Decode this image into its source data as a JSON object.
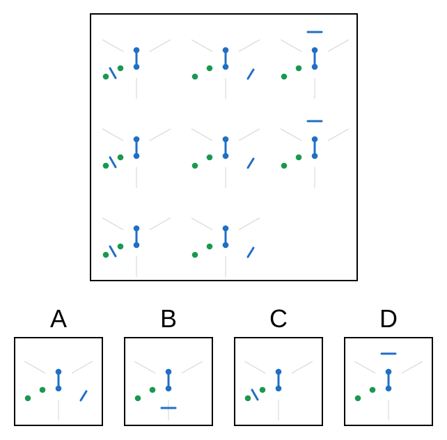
{
  "colors": {
    "guide": "#dddddd",
    "blue": "#1f6fc5",
    "green": "#1a9850",
    "border": "#000000"
  },
  "matrix": {
    "cells": [
      {
        "mark": "left-slash"
      },
      {
        "mark": "right-slash"
      },
      {
        "mark": "top-bar"
      },
      {
        "mark": "left-slash"
      },
      {
        "mark": "right-slash"
      },
      {
        "mark": "top-bar"
      },
      {
        "mark": "left-slash"
      },
      {
        "mark": "right-slash"
      },
      {
        "mark": "empty"
      }
    ]
  },
  "options": [
    {
      "label": "A",
      "mark": "right-slash"
    },
    {
      "label": "B",
      "mark": "bottom-bar"
    },
    {
      "label": "C",
      "mark": "left-slash"
    },
    {
      "label": "D",
      "mark": "top-bar"
    }
  ]
}
